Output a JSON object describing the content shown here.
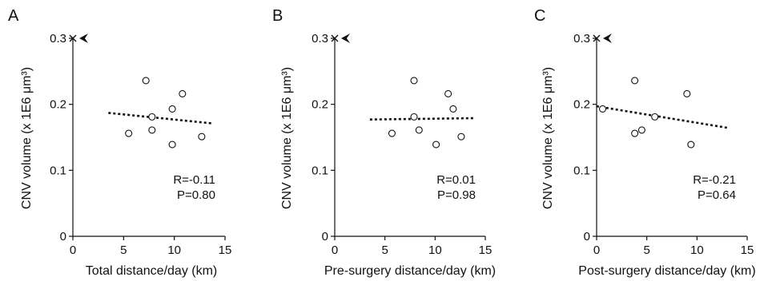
{
  "chart_data": [
    {
      "type": "scatter",
      "panel_label": "A",
      "xlabel": "Total distance/day (km)",
      "ylabel": "CNV volume (x 1E6 μm³)",
      "xlim": [
        0,
        15
      ],
      "ylim": [
        0,
        0.3
      ],
      "x_ticks": [
        "0",
        "5",
        "10",
        "15"
      ],
      "y_ticks": [
        "0",
        "0.1",
        "0.2",
        "0.3"
      ],
      "points": [
        {
          "x": 5.5,
          "y": 0.156
        },
        {
          "x": 7.2,
          "y": 0.236
        },
        {
          "x": 7.8,
          "y": 0.161
        },
        {
          "x": 7.8,
          "y": 0.181
        },
        {
          "x": 9.8,
          "y": 0.193
        },
        {
          "x": 9.8,
          "y": 0.139
        },
        {
          "x": 10.8,
          "y": 0.216
        },
        {
          "x": 12.7,
          "y": 0.151
        }
      ],
      "trendline": {
        "x": [
          3.5,
          13.8
        ],
        "y": [
          0.187,
          0.171
        ]
      },
      "marker": {
        "x": 0,
        "y": 0.3
      },
      "annotations": [
        "R=-0.11",
        "P=0.80"
      ]
    },
    {
      "type": "scatter",
      "panel_label": "B",
      "xlabel": "Pre-surgery distance/day (km)",
      "ylabel": "CNV volume (x 1E6 μm³)",
      "xlim": [
        0,
        15
      ],
      "ylim": [
        0,
        0.3
      ],
      "x_ticks": [
        "0",
        "5",
        "10",
        "15"
      ],
      "y_ticks": [
        "0",
        "0.1",
        "0.2",
        "0.3"
      ],
      "points": [
        {
          "x": 5.7,
          "y": 0.156
        },
        {
          "x": 7.9,
          "y": 0.236
        },
        {
          "x": 8.4,
          "y": 0.161
        },
        {
          "x": 7.9,
          "y": 0.181
        },
        {
          "x": 11.8,
          "y": 0.193
        },
        {
          "x": 10.1,
          "y": 0.139
        },
        {
          "x": 11.3,
          "y": 0.216
        },
        {
          "x": 12.6,
          "y": 0.151
        }
      ],
      "trendline": {
        "x": [
          3.5,
          14.0
        ],
        "y": [
          0.177,
          0.179
        ]
      },
      "marker": {
        "x": 0,
        "y": 0.3
      },
      "annotations": [
        "R=0.01",
        "P=0.98"
      ]
    },
    {
      "type": "scatter",
      "panel_label": "C",
      "xlabel": "Post-surgery distance/day (km)",
      "ylabel": "CNV volume (x 1E6 μm³)",
      "xlim": [
        0,
        15
      ],
      "ylim": [
        0,
        0.3
      ],
      "x_ticks": [
        "0",
        "5",
        "10",
        "15"
      ],
      "y_ticks": [
        "0",
        "0.1",
        "0.2",
        "0.3"
      ],
      "points": [
        {
          "x": 0.6,
          "y": 0.193
        },
        {
          "x": 3.8,
          "y": 0.236
        },
        {
          "x": 3.8,
          "y": 0.156
        },
        {
          "x": 4.5,
          "y": 0.161
        },
        {
          "x": 5.8,
          "y": 0.181
        },
        {
          "x": 9.0,
          "y": 0.216
        },
        {
          "x": 9.4,
          "y": 0.139
        }
      ],
      "trendline": {
        "x": [
          0,
          13.2
        ],
        "y": [
          0.197,
          0.164
        ]
      },
      "marker": {
        "x": 0,
        "y": 0.3
      },
      "annotations": [
        "R=-0.21",
        "P=0.64"
      ]
    }
  ]
}
